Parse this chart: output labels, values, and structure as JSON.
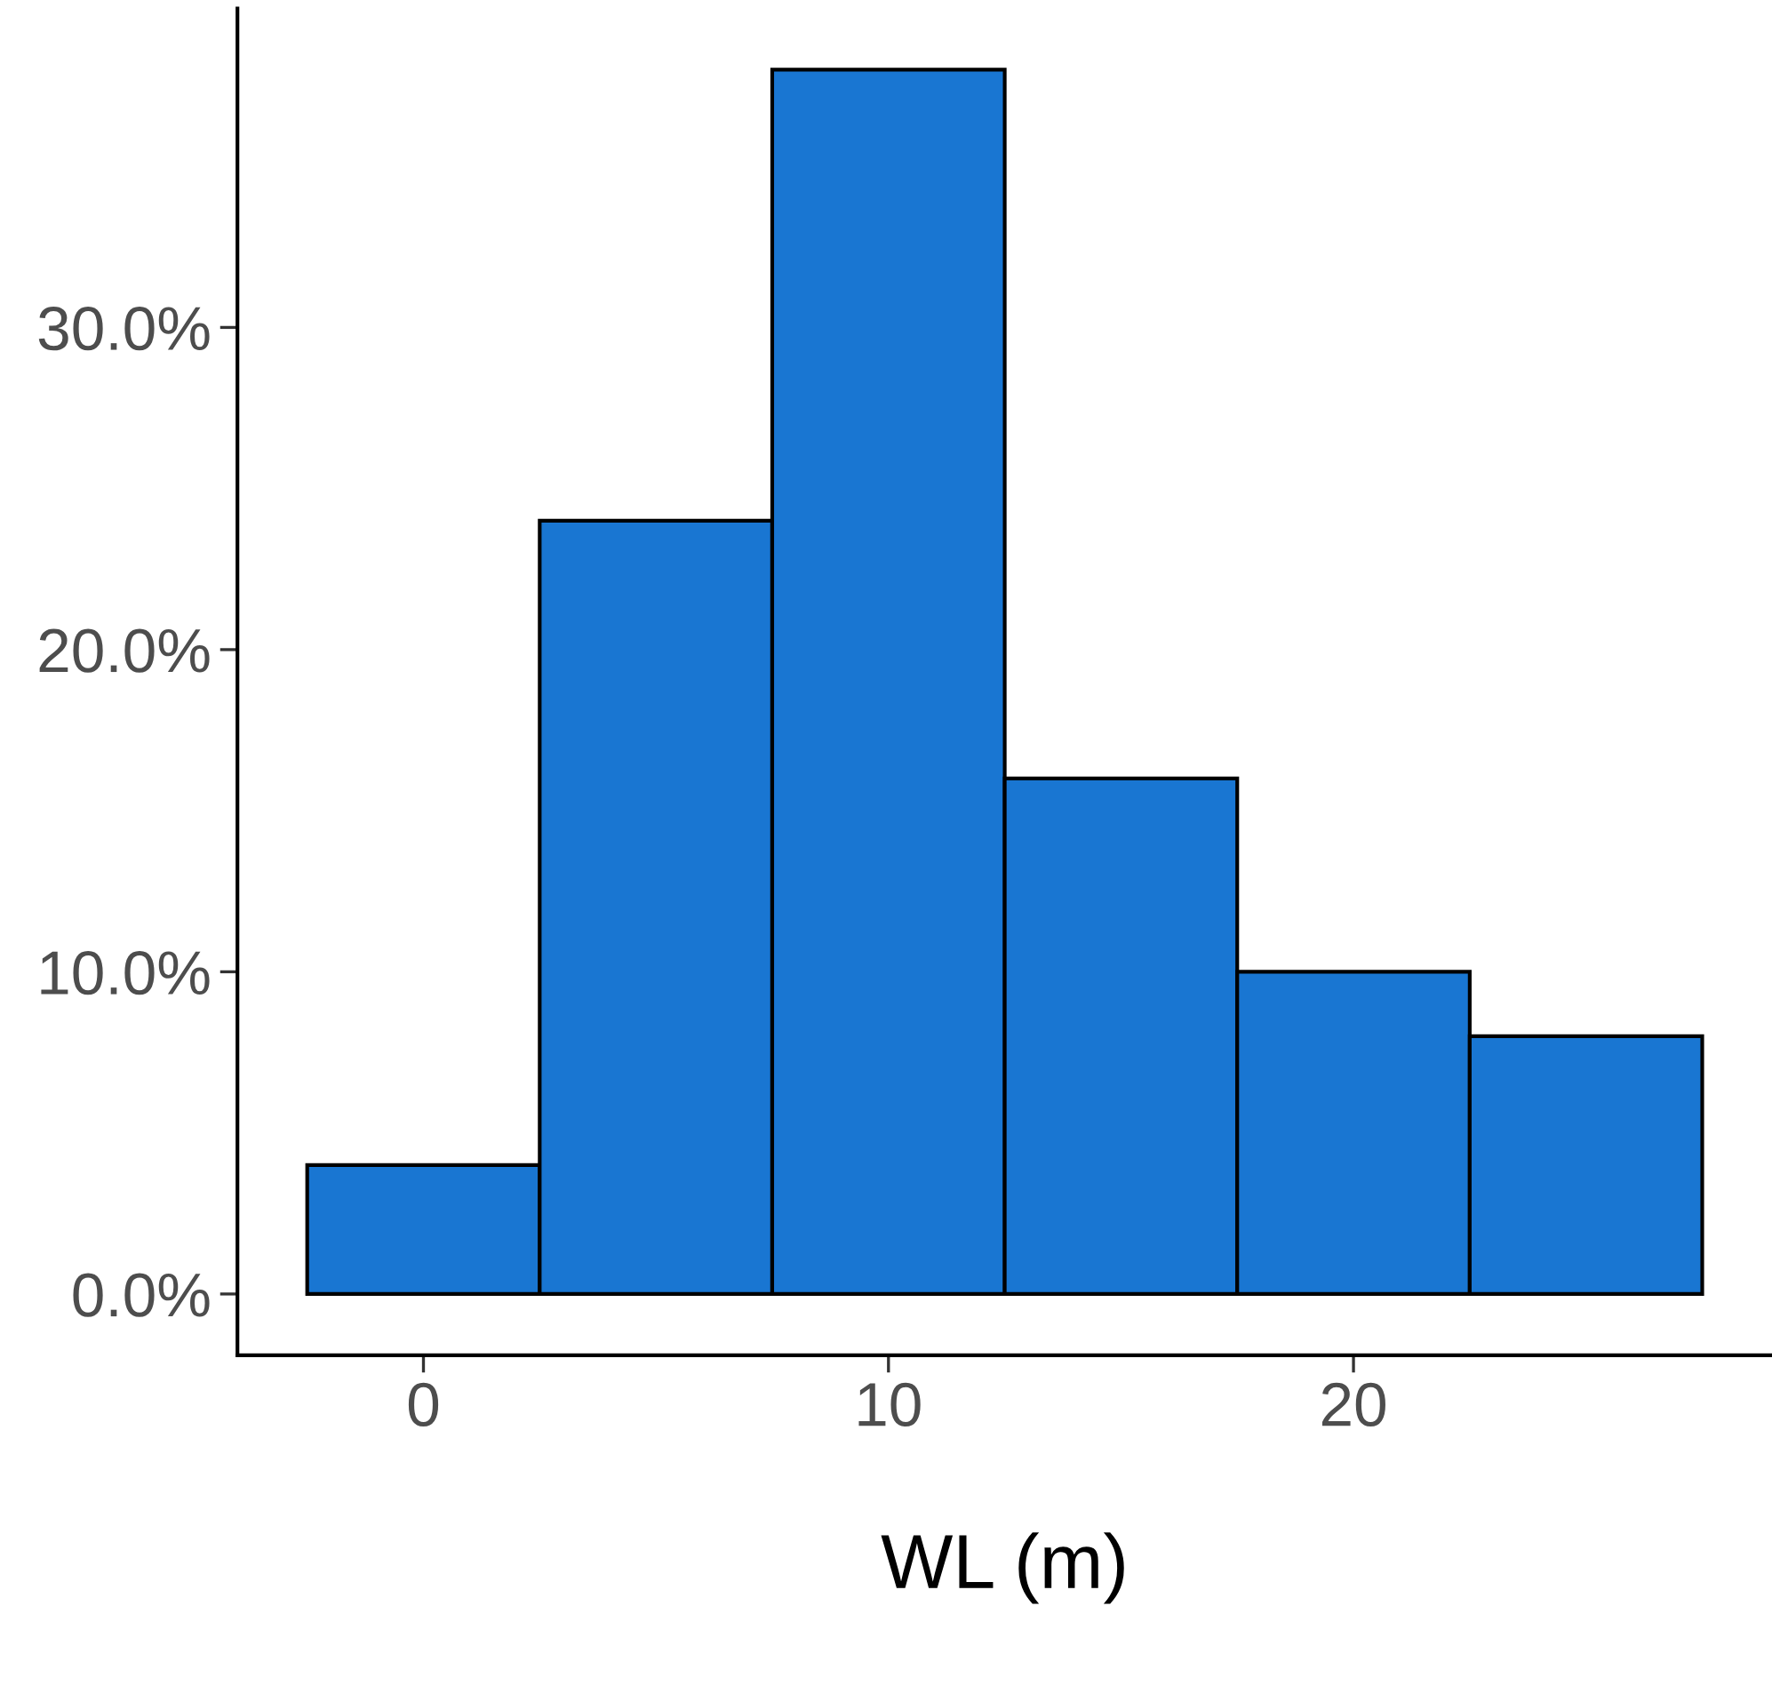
{
  "chart_data": {
    "type": "histogram",
    "xlabel": "WL (m)",
    "bins": [
      -2.5,
      2.5,
      7.5,
      12.5,
      17.5,
      22.5,
      27.5
    ],
    "values": [
      4,
      24,
      38,
      16,
      10,
      8
    ],
    "color": "#1976d2",
    "xlim": [
      -4,
      29
    ],
    "ylim": [
      -1.9,
      39.9
    ],
    "xticks": [
      0,
      10,
      20
    ],
    "yticks": [
      {
        "value": 0,
        "label": "0.0%"
      },
      {
        "value": 10,
        "label": "10.0%"
      },
      {
        "value": 20,
        "label": "20.0%"
      },
      {
        "value": 30,
        "label": "30.0%"
      }
    ],
    "grid": false
  }
}
